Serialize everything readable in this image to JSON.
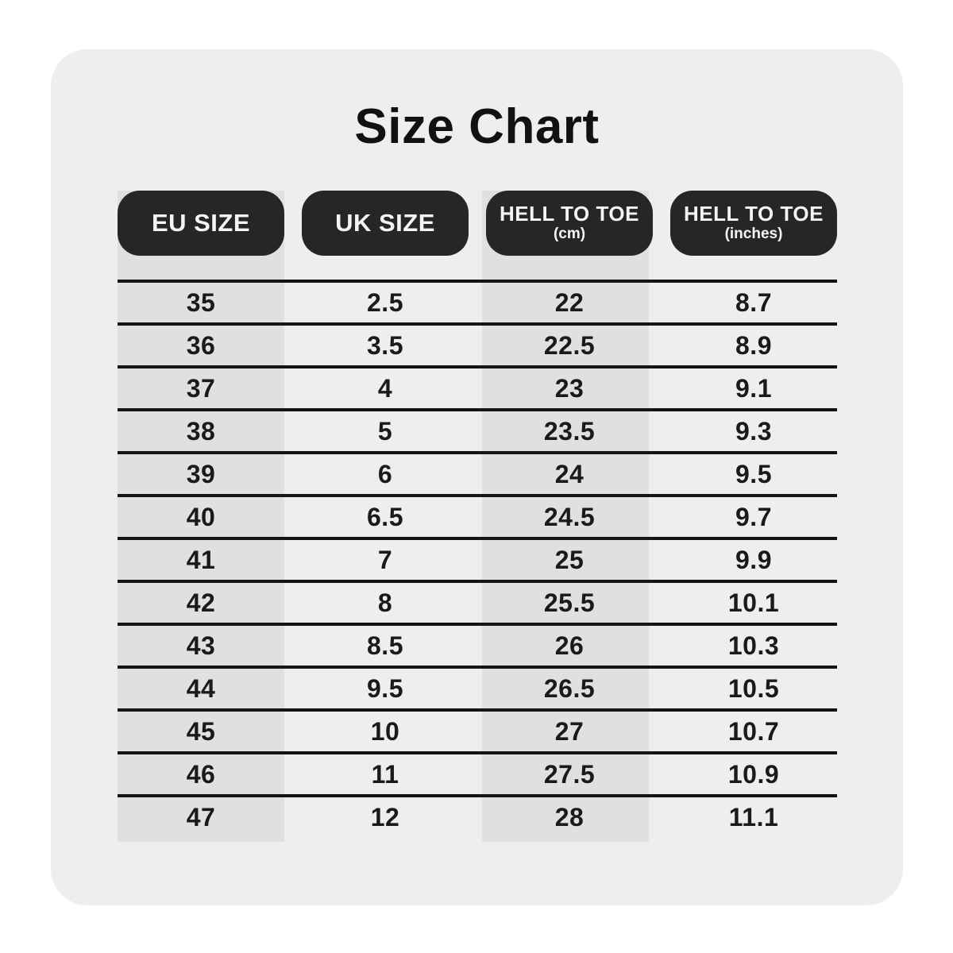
{
  "title": "Size Chart",
  "chart_data": {
    "type": "table",
    "title": "Size Chart",
    "columns": [
      {
        "key": "eu-size",
        "label": "EU SIZE",
        "sub": "",
        "striped": true
      },
      {
        "key": "uk-size",
        "label": "UK SIZE",
        "sub": "",
        "striped": false
      },
      {
        "key": "heel-to-toe-cm",
        "label": "HELL TO TOE",
        "sub": "(cm)",
        "striped": true
      },
      {
        "key": "heel-to-toe-inches",
        "label": "HELL TO TOE",
        "sub": "(inches)",
        "striped": false
      }
    ],
    "rows": [
      [
        "35",
        "2.5",
        "22",
        "8.7"
      ],
      [
        "36",
        "3.5",
        "22.5",
        "8.9"
      ],
      [
        "37",
        "4",
        "23",
        "9.1"
      ],
      [
        "38",
        "5",
        "23.5",
        "9.3"
      ],
      [
        "39",
        "6",
        "24",
        "9.5"
      ],
      [
        "40",
        "6.5",
        "24.5",
        "9.7"
      ],
      [
        "41",
        "7",
        "25",
        "9.9"
      ],
      [
        "42",
        "8",
        "25.5",
        "10.1"
      ],
      [
        "43",
        "8.5",
        "26",
        "10.3"
      ],
      [
        "44",
        "9.5",
        "26.5",
        "10.5"
      ],
      [
        "45",
        "10",
        "27",
        "10.7"
      ],
      [
        "46",
        "11",
        "27.5",
        "10.9"
      ],
      [
        "47",
        "12",
        "28",
        "11.1"
      ]
    ]
  },
  "colors": {
    "page_bg": "#ffffff",
    "card_bg": "#eeeeee",
    "column_stripe": "#e0e0e0",
    "header_pill_bg": "#262626",
    "header_pill_text": "#f4f4f4",
    "row_line": "#141414",
    "body_text": "#1a1a1a",
    "title_text": "#111111"
  }
}
